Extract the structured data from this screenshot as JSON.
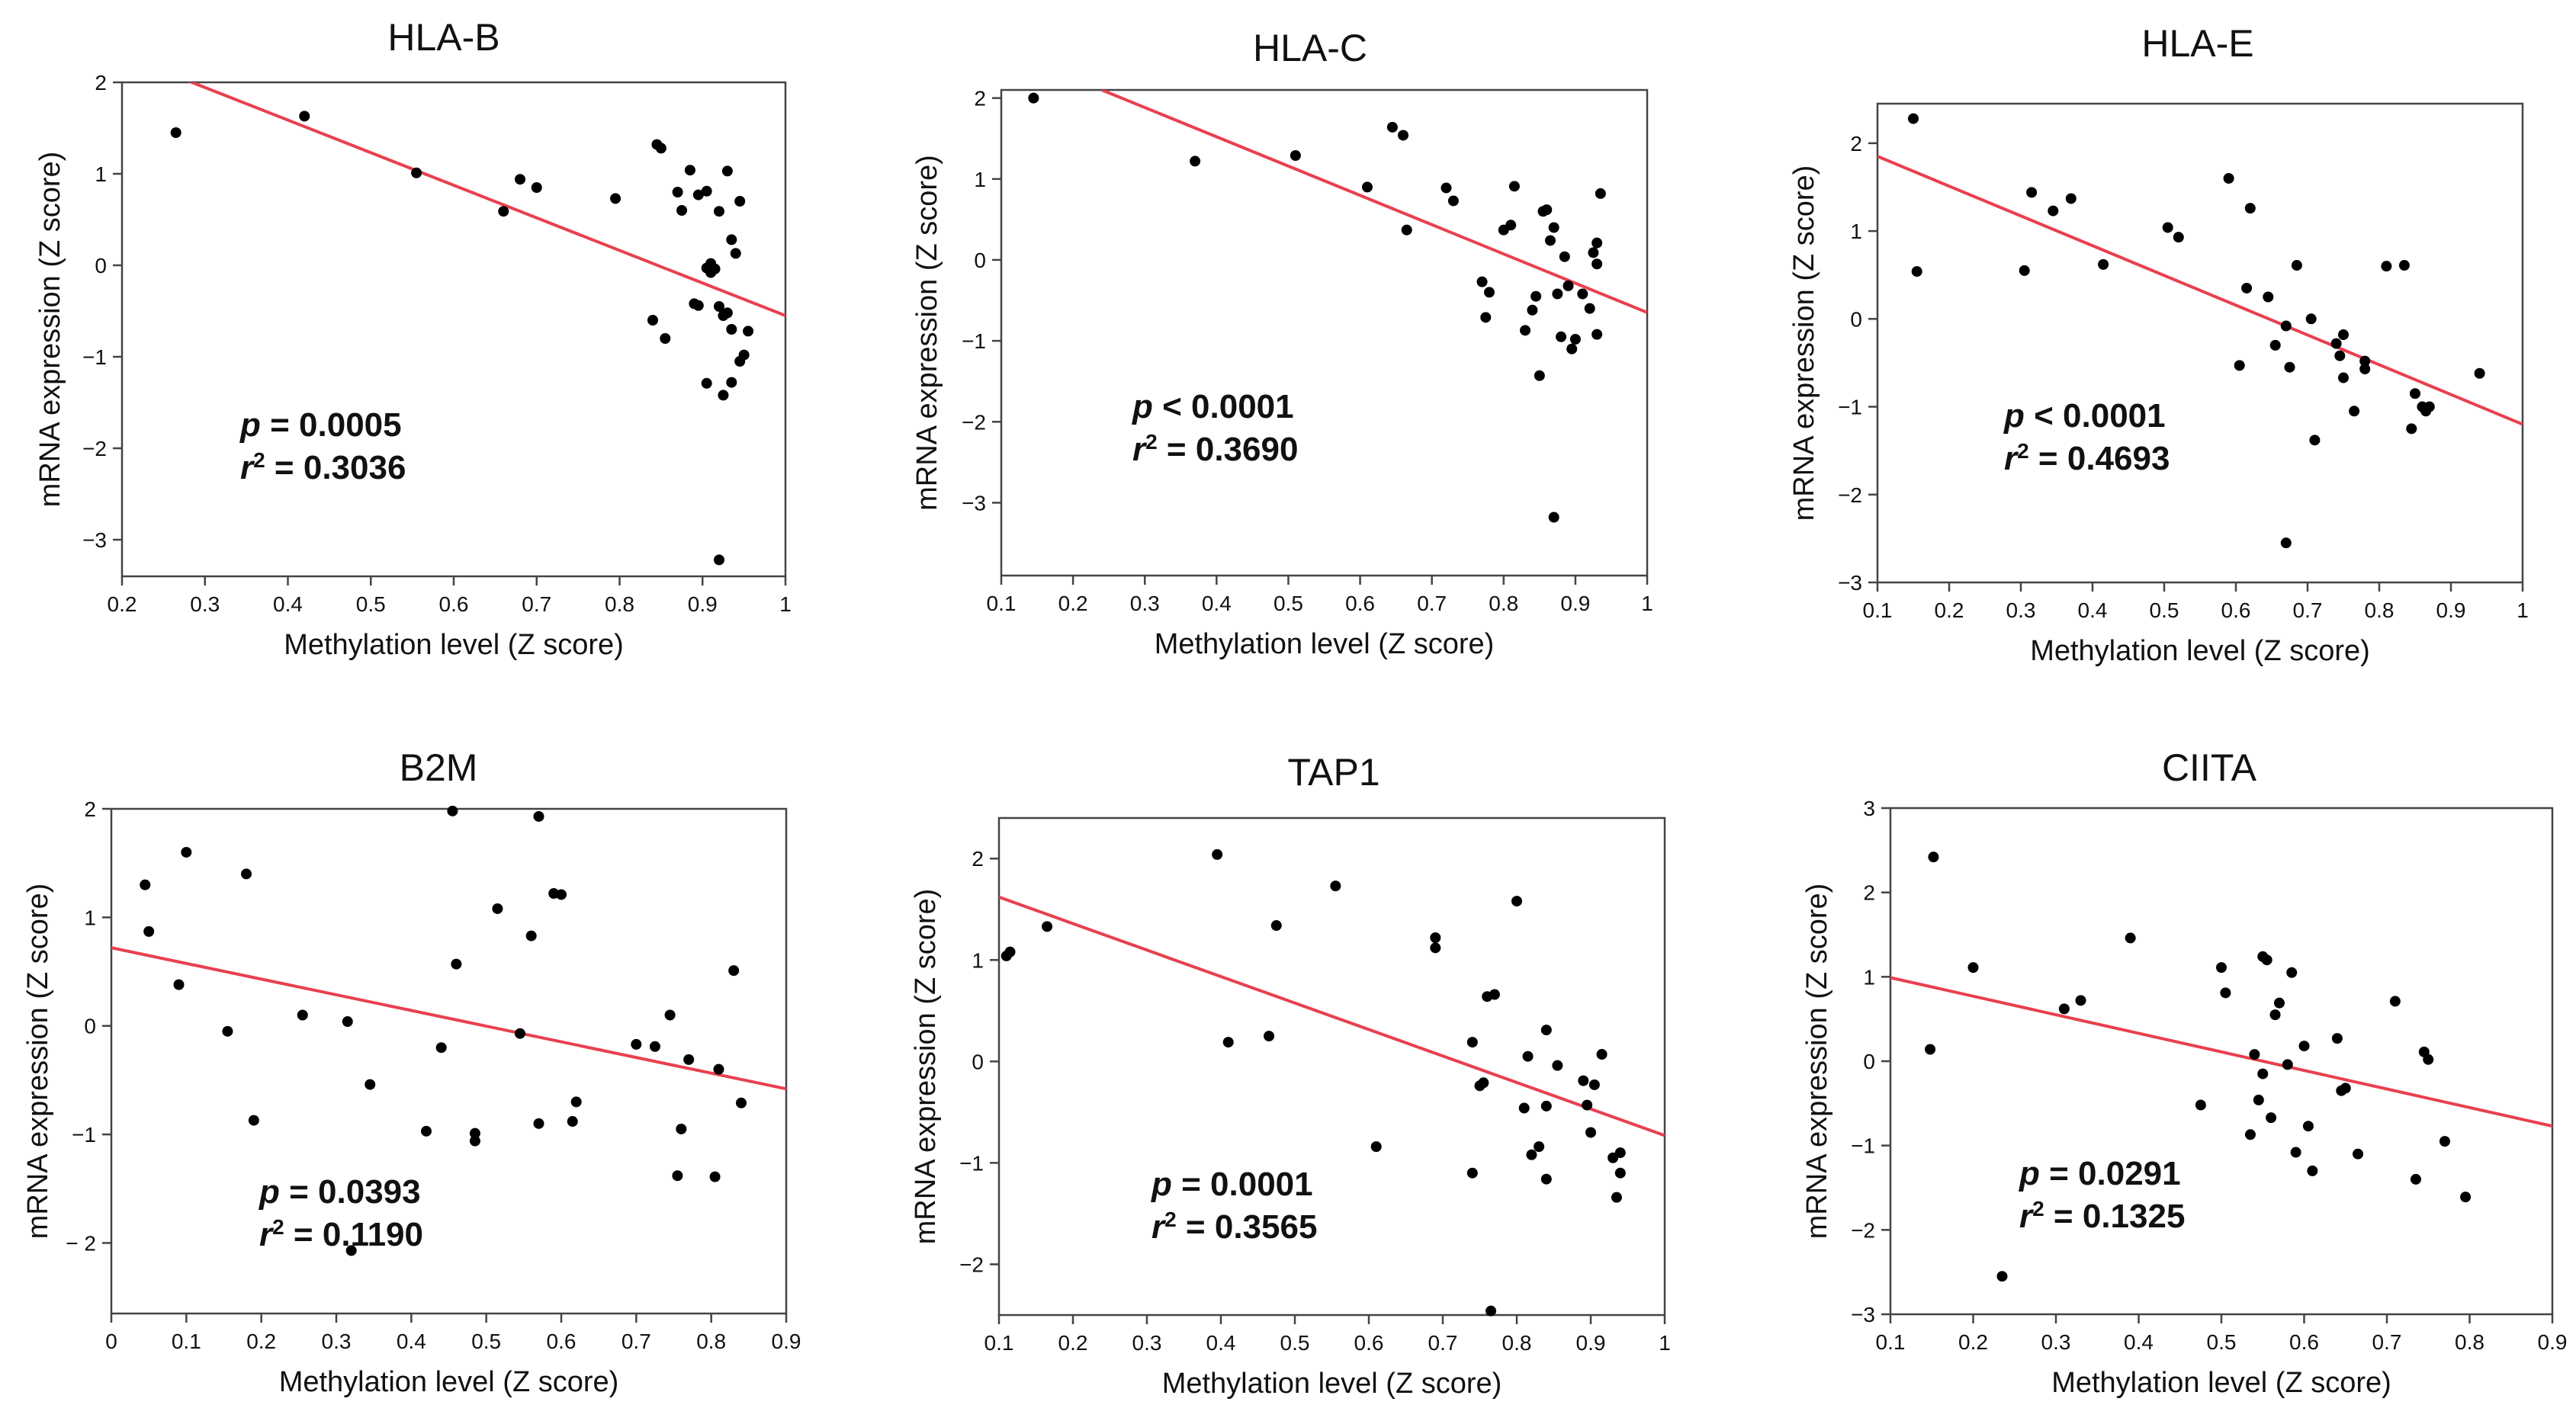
{
  "chart_data": [
    {
      "type": "scatter",
      "title": "HLA-B",
      "xlabel": "Methylation level (Z score)",
      "ylabel": "mRNA expression (Z score)",
      "xlim": [
        0.2,
        1.0
      ],
      "ylim": [
        -3.4,
        2.0
      ],
      "xticks": [
        0.2,
        0.3,
        0.4,
        0.5,
        0.6,
        0.7,
        0.8,
        0.9,
        1.0
      ],
      "xtick_labels": [
        "0.2",
        "0.3",
        "0.4",
        "0.5",
        "0.6",
        "0.7",
        "0.8",
        "0.9",
        "1"
      ],
      "yticks": [
        2,
        1,
        0,
        -1,
        -2,
        -3
      ],
      "ytick_labels": [
        "2",
        "1",
        "0",
        "−1",
        "−2",
        "−3"
      ],
      "fit_line": [
        [
          0.2,
          2.3
        ],
        [
          1.0,
          -0.55
        ]
      ],
      "stats": {
        "p_label": "p",
        "p_value": "= 0.0005",
        "r_label": "r",
        "r_sup": "2",
        "r2_value": "= 0.3036"
      },
      "points": [
        [
          0.265,
          1.45
        ],
        [
          0.42,
          1.63
        ],
        [
          0.555,
          1.01
        ],
        [
          0.66,
          0.59
        ],
        [
          0.68,
          0.94
        ],
        [
          0.7,
          0.85
        ],
        [
          0.795,
          0.73
        ],
        [
          0.845,
          1.32
        ],
        [
          0.85,
          1.28
        ],
        [
          0.87,
          0.8
        ],
        [
          0.875,
          0.6
        ],
        [
          0.885,
          1.04
        ],
        [
          0.895,
          0.77
        ],
        [
          0.905,
          0.81
        ],
        [
          0.92,
          0.59
        ],
        [
          0.93,
          1.03
        ],
        [
          0.935,
          0.28
        ],
        [
          0.94,
          0.13
        ],
        [
          0.945,
          0.7
        ],
        [
          0.89,
          -0.42
        ],
        [
          0.895,
          -0.44
        ],
        [
          0.905,
          -0.03
        ],
        [
          0.91,
          -0.08
        ],
        [
          0.91,
          0.02
        ],
        [
          0.915,
          -0.04
        ],
        [
          0.92,
          -0.45
        ],
        [
          0.925,
          -0.55
        ],
        [
          0.93,
          -0.52
        ],
        [
          0.935,
          -0.7
        ],
        [
          0.945,
          -1.05
        ],
        [
          0.95,
          -0.98
        ],
        [
          0.955,
          -0.72
        ],
        [
          0.84,
          -0.6
        ],
        [
          0.855,
          -0.8
        ],
        [
          0.905,
          -1.29
        ],
        [
          0.925,
          -1.42
        ],
        [
          0.935,
          -1.28
        ],
        [
          0.92,
          -3.22
        ]
      ]
    },
    {
      "type": "scatter",
      "title": "HLA-C",
      "xlabel": "Methylation level (Z score)",
      "ylabel": "mRNA expression (Z score)",
      "xlim": [
        0.1,
        1.0
      ],
      "ylim": [
        -3.9,
        2.1
      ],
      "xticks": [
        0.1,
        0.2,
        0.3,
        0.4,
        0.5,
        0.6,
        0.7,
        0.8,
        0.9,
        1.0
      ],
      "xtick_labels": [
        "0.1",
        "0.2",
        "0.3",
        "0.4",
        "0.5",
        "0.6",
        "0.7",
        "0.8",
        "0.9",
        "1"
      ],
      "yticks": [
        2,
        1,
        0,
        -1,
        -2,
        -3
      ],
      "ytick_labels": [
        "2",
        "1",
        "0",
        "−1",
        "−2",
        "−3"
      ],
      "fit_line": [
        [
          0.24,
          2.1
        ],
        [
          1.0,
          -0.65
        ]
      ],
      "stats": {
        "p_label": "p",
        "p_value": "< 0.0001",
        "r_label": "r",
        "r_sup": "2",
        "r2_value": "= 0.3690"
      },
      "points": [
        [
          0.145,
          2.0
        ],
        [
          0.37,
          1.22
        ],
        [
          0.51,
          1.29
        ],
        [
          0.61,
          0.9
        ],
        [
          0.645,
          1.64
        ],
        [
          0.66,
          1.54
        ],
        [
          0.665,
          0.37
        ],
        [
          0.72,
          0.89
        ],
        [
          0.73,
          0.73
        ],
        [
          0.8,
          0.37
        ],
        [
          0.81,
          0.43
        ],
        [
          0.815,
          0.91
        ],
        [
          0.84,
          -0.62
        ],
        [
          0.845,
          -0.45
        ],
        [
          0.83,
          -0.87
        ],
        [
          0.855,
          0.6
        ],
        [
          0.86,
          0.62
        ],
        [
          0.865,
          0.24
        ],
        [
          0.87,
          0.4
        ],
        [
          0.875,
          -0.42
        ],
        [
          0.88,
          -0.95
        ],
        [
          0.885,
          0.04
        ],
        [
          0.89,
          -0.32
        ],
        [
          0.895,
          -1.1
        ],
        [
          0.9,
          -0.98
        ],
        [
          0.91,
          -0.42
        ],
        [
          0.92,
          -0.6
        ],
        [
          0.925,
          0.09
        ],
        [
          0.93,
          0.21
        ],
        [
          0.935,
          0.82
        ],
        [
          0.93,
          -0.05
        ],
        [
          0.93,
          -0.92
        ],
        [
          0.77,
          -0.27
        ],
        [
          0.775,
          -0.71
        ],
        [
          0.78,
          -0.4
        ],
        [
          0.85,
          -1.43
        ],
        [
          0.87,
          -3.18
        ]
      ]
    },
    {
      "type": "scatter",
      "title": "HLA-E",
      "xlabel": "Methylation level (Z score)",
      "ylabel": "mRNA expression (Z score)",
      "xlim": [
        0.1,
        1.0
      ],
      "ylim": [
        -3.0,
        2.45
      ],
      "xticks": [
        0.1,
        0.2,
        0.3,
        0.4,
        0.5,
        0.6,
        0.7,
        0.8,
        0.9,
        1.0
      ],
      "xtick_labels": [
        "0.1",
        "0.2",
        "0.3",
        "0.4",
        "0.5",
        "0.6",
        "0.7",
        "0.8",
        "0.9",
        "1"
      ],
      "yticks": [
        2,
        1,
        0,
        -1,
        -2,
        -3
      ],
      "ytick_labels": [
        "2",
        "1",
        "0",
        "−1",
        "−2",
        "−3"
      ],
      "fit_line": [
        [
          0.1,
          1.85
        ],
        [
          1.0,
          -1.2
        ]
      ],
      "stats": {
        "p_label": "p",
        "p_value": "< 0.0001",
        "r_label": "r",
        "r_sup": "2",
        "r2_value": "= 0.4693"
      },
      "points": [
        [
          0.15,
          2.28
        ],
        [
          0.155,
          0.54
        ],
        [
          0.305,
          0.55
        ],
        [
          0.315,
          1.44
        ],
        [
          0.345,
          1.23
        ],
        [
          0.37,
          1.37
        ],
        [
          0.415,
          0.62
        ],
        [
          0.505,
          1.04
        ],
        [
          0.52,
          0.93
        ],
        [
          0.59,
          1.6
        ],
        [
          0.605,
          -0.53
        ],
        [
          0.615,
          0.35
        ],
        [
          0.62,
          1.26
        ],
        [
          0.645,
          0.25
        ],
        [
          0.655,
          -0.3
        ],
        [
          0.67,
          -0.08
        ],
        [
          0.675,
          -0.55
        ],
        [
          0.685,
          0.61
        ],
        [
          0.705,
          0.0
        ],
        [
          0.71,
          -1.38
        ],
        [
          0.74,
          -0.28
        ],
        [
          0.745,
          -0.42
        ],
        [
          0.75,
          -0.18
        ],
        [
          0.75,
          -0.67
        ],
        [
          0.765,
          -1.05
        ],
        [
          0.78,
          -0.48
        ],
        [
          0.78,
          -0.57
        ],
        [
          0.81,
          0.6
        ],
        [
          0.835,
          0.61
        ],
        [
          0.845,
          -1.25
        ],
        [
          0.85,
          -0.85
        ],
        [
          0.86,
          -1.0
        ],
        [
          0.865,
          -1.05
        ],
        [
          0.87,
          -1.0
        ],
        [
          0.94,
          -0.62
        ],
        [
          0.67,
          -2.55
        ]
      ]
    },
    {
      "type": "scatter",
      "title": "B2M",
      "xlabel": "Methylation level (Z score)",
      "ylabel": "mRNA expression (Z score)",
      "xlim": [
        0.0,
        0.9
      ],
      "ylim": [
        -2.65,
        2.0
      ],
      "xticks": [
        0,
        0.1,
        0.2,
        0.3,
        0.4,
        0.5,
        0.6,
        0.7,
        0.8,
        0.9
      ],
      "xtick_labels": [
        "0",
        "0.1",
        "0.2",
        "0.3",
        "0.4",
        "0.5",
        "0.6",
        "0.7",
        "0.8",
        "0.9"
      ],
      "yticks": [
        2,
        1,
        0,
        -1,
        -2
      ],
      "ytick_labels": [
        "2",
        "1",
        "0",
        "−1",
        "− 2"
      ],
      "fit_line": [
        [
          0.0,
          0.72
        ],
        [
          0.9,
          -0.58
        ]
      ],
      "stats": {
        "p_label": "p",
        "p_value": "= 0.0393",
        "r_label": "r",
        "r_sup": "2",
        "r2_value": "= 0.1190"
      },
      "points": [
        [
          0.045,
          1.3
        ],
        [
          0.05,
          0.87
        ],
        [
          0.09,
          0.38
        ],
        [
          0.1,
          1.6
        ],
        [
          0.155,
          -0.05
        ],
        [
          0.18,
          1.4
        ],
        [
          0.19,
          -0.87
        ],
        [
          0.255,
          0.1
        ],
        [
          0.315,
          0.04
        ],
        [
          0.32,
          -2.07
        ],
        [
          0.345,
          -0.54
        ],
        [
          0.42,
          -0.97
        ],
        [
          0.44,
          -0.2
        ],
        [
          0.455,
          1.98
        ],
        [
          0.46,
          0.57
        ],
        [
          0.485,
          -0.99
        ],
        [
          0.485,
          -1.06
        ],
        [
          0.515,
          1.08
        ],
        [
          0.545,
          -0.07
        ],
        [
          0.56,
          0.83
        ],
        [
          0.57,
          -0.9
        ],
        [
          0.57,
          1.93
        ],
        [
          0.59,
          1.22
        ],
        [
          0.6,
          1.21
        ],
        [
          0.615,
          -0.88
        ],
        [
          0.62,
          -0.7
        ],
        [
          0.7,
          -0.17
        ],
        [
          0.725,
          -0.19
        ],
        [
          0.745,
          0.1
        ],
        [
          0.755,
          -1.38
        ],
        [
          0.76,
          -0.95
        ],
        [
          0.77,
          -0.31
        ],
        [
          0.81,
          -0.4
        ],
        [
          0.805,
          -1.39
        ],
        [
          0.83,
          0.51
        ],
        [
          0.84,
          -0.71
        ]
      ]
    },
    {
      "type": "scatter",
      "title": "TAP1",
      "xlabel": "Methylation level (Z score)",
      "ylabel": "mRNA expression (Z score)",
      "xlim": [
        0.1,
        1.0
      ],
      "ylim": [
        -2.5,
        2.4
      ],
      "xticks": [
        0.1,
        0.2,
        0.3,
        0.4,
        0.5,
        0.6,
        0.7,
        0.8,
        0.9,
        1.0
      ],
      "xtick_labels": [
        "0.1",
        "0.2",
        "0.3",
        "0.4",
        "0.5",
        "0.6",
        "0.7",
        "0.8",
        "0.9",
        "1"
      ],
      "yticks": [
        2,
        1,
        0,
        -1,
        -2
      ],
      "ytick_labels": [
        "2",
        "1",
        "0",
        "−1",
        "−2"
      ],
      "fit_line": [
        [
          0.1,
          1.62
        ],
        [
          1.0,
          -0.73
        ]
      ],
      "stats": {
        "p_label": "p",
        "p_value": "= 0.0001",
        "r_label": "r",
        "r_sup": "2",
        "r2_value": "= 0.3565"
      },
      "points": [
        [
          0.11,
          1.04
        ],
        [
          0.115,
          1.08
        ],
        [
          0.165,
          1.33
        ],
        [
          0.395,
          2.04
        ],
        [
          0.41,
          0.19
        ],
        [
          0.465,
          0.25
        ],
        [
          0.475,
          1.34
        ],
        [
          0.555,
          1.73
        ],
        [
          0.61,
          -0.84
        ],
        [
          0.69,
          1.22
        ],
        [
          0.69,
          1.12
        ],
        [
          0.74,
          0.19
        ],
        [
          0.74,
          -1.1
        ],
        [
          0.75,
          -0.24
        ],
        [
          0.755,
          -0.21
        ],
        [
          0.76,
          0.64
        ],
        [
          0.77,
          0.66
        ],
        [
          0.8,
          1.58
        ],
        [
          0.81,
          -0.46
        ],
        [
          0.815,
          0.05
        ],
        [
          0.82,
          -0.92
        ],
        [
          0.83,
          -0.84
        ],
        [
          0.84,
          0.31
        ],
        [
          0.84,
          -1.16
        ],
        [
          0.855,
          -0.04
        ],
        [
          0.84,
          -0.44
        ],
        [
          0.89,
          -0.19
        ],
        [
          0.895,
          -0.43
        ],
        [
          0.9,
          -0.7
        ],
        [
          0.905,
          -0.23
        ],
        [
          0.915,
          0.07
        ],
        [
          0.93,
          -0.95
        ],
        [
          0.935,
          -1.34
        ],
        [
          0.94,
          -0.9
        ],
        [
          0.94,
          -1.1
        ],
        [
          0.765,
          -2.46
        ]
      ]
    },
    {
      "type": "scatter",
      "title": "CIITA",
      "xlabel": "Methylation level (Z score)",
      "ylabel": "mRNA expression (Z score)",
      "xlim": [
        0.1,
        0.9
      ],
      "ylim": [
        -3.0,
        3.0
      ],
      "xticks": [
        0.1,
        0.2,
        0.3,
        0.4,
        0.5,
        0.6,
        0.7,
        0.8,
        0.9
      ],
      "xtick_labels": [
        "0.1",
        "0.2",
        "0.3",
        "0.4",
        "0.5",
        "0.6",
        "0.7",
        "0.8",
        "0.9"
      ],
      "yticks": [
        3,
        2,
        1,
        0,
        -1,
        -2,
        -3
      ],
      "ytick_labels": [
        "3",
        "2",
        "1",
        "0",
        "−1",
        "−2",
        "−3"
      ],
      "fit_line": [
        [
          0.1,
          0.99
        ],
        [
          0.9,
          -0.77
        ]
      ],
      "stats": {
        "p_label": "p",
        "p_value": "= 0.0291",
        "r_label": "r",
        "r_sup": "2",
        "r2_value": "= 0.1325"
      },
      "points": [
        [
          0.148,
          0.14
        ],
        [
          0.152,
          2.42
        ],
        [
          0.2,
          1.11
        ],
        [
          0.31,
          0.62
        ],
        [
          0.33,
          0.72
        ],
        [
          0.39,
          1.46
        ],
        [
          0.475,
          -0.52
        ],
        [
          0.5,
          1.11
        ],
        [
          0.505,
          0.81
        ],
        [
          0.535,
          -0.87
        ],
        [
          0.54,
          0.08
        ],
        [
          0.545,
          -0.46
        ],
        [
          0.55,
          1.24
        ],
        [
          0.55,
          -0.15
        ],
        [
          0.555,
          1.2
        ],
        [
          0.56,
          -0.67
        ],
        [
          0.565,
          0.55
        ],
        [
          0.57,
          0.69
        ],
        [
          0.58,
          -0.04
        ],
        [
          0.585,
          1.05
        ],
        [
          0.59,
          -1.08
        ],
        [
          0.6,
          0.18
        ],
        [
          0.605,
          -0.77
        ],
        [
          0.61,
          -1.3
        ],
        [
          0.64,
          0.27
        ],
        [
          0.645,
          -0.35
        ],
        [
          0.65,
          -0.32
        ],
        [
          0.665,
          -1.1
        ],
        [
          0.71,
          0.71
        ],
        [
          0.735,
          -1.4
        ],
        [
          0.745,
          0.11
        ],
        [
          0.75,
          0.02
        ],
        [
          0.77,
          -0.95
        ],
        [
          0.795,
          -1.61
        ],
        [
          0.235,
          -2.55
        ]
      ]
    }
  ]
}
